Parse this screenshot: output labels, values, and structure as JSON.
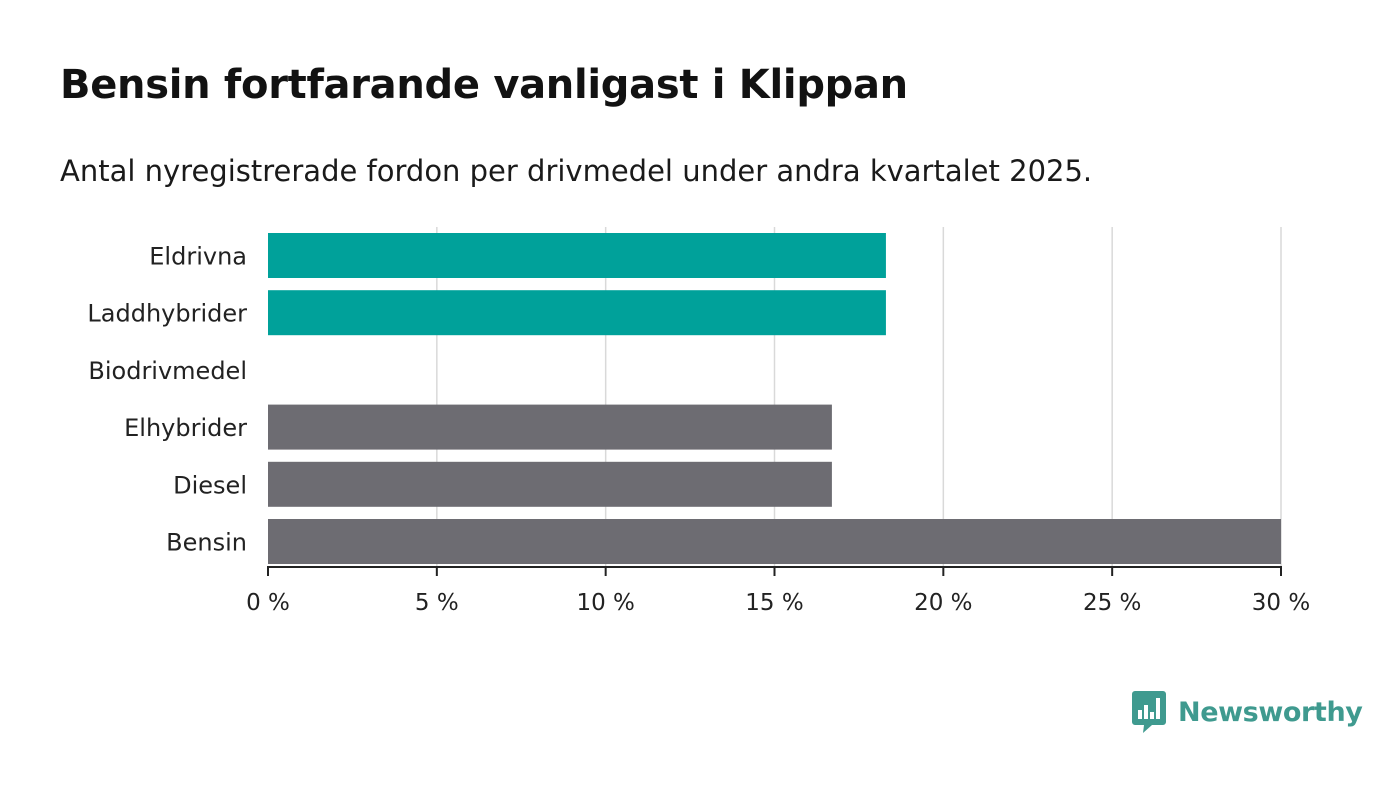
{
  "header": {
    "title": "Bensin fortfarande vanligast i Klippan",
    "subtitle": "Antal nyregistrerade fordon per drivmedel under andra kvartalet 2025."
  },
  "brand": {
    "name": "Newsworthy",
    "icon": "bar-chart-speech-bubble-icon",
    "color": "#3f9a8f"
  },
  "chart_data": {
    "type": "bar",
    "orientation": "horizontal",
    "categories": [
      "Eldrivna",
      "Laddhybrider",
      "Biodrivmedel",
      "Elhybrider",
      "Diesel",
      "Bensin"
    ],
    "values": [
      18.3,
      18.3,
      0,
      16.7,
      16.7,
      30.0
    ],
    "colors": [
      "#00a19a",
      "#00a19a",
      "#00a19a",
      "#6d6c72",
      "#6d6c72",
      "#6d6c72"
    ],
    "xlim": [
      0,
      30
    ],
    "xticks": [
      0,
      5,
      10,
      15,
      20,
      25,
      30
    ],
    "tick_suffix": " %",
    "grid": true,
    "legend": "none"
  }
}
